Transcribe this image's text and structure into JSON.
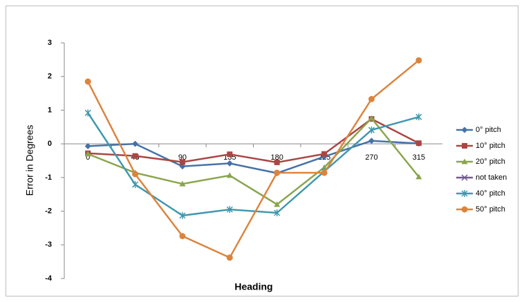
{
  "chart_data": {
    "type": "line",
    "x_label": "Heading",
    "y_label": "Error in Degrees",
    "categories": [
      "0",
      "45",
      "90",
      "135",
      "180",
      "225",
      "270",
      "315"
    ],
    "series": [
      {
        "name": "0° pitch",
        "color": "#4572A7",
        "marker": "diamond",
        "values": [
          -0.07,
          0.0,
          -0.67,
          -0.58,
          -0.87,
          -0.38,
          0.09,
          0.01
        ]
      },
      {
        "name": "10° pitch",
        "color": "#AA4643",
        "marker": "square",
        "values": [
          -0.28,
          -0.36,
          -0.54,
          -0.31,
          -0.55,
          -0.3,
          0.74,
          0.02
        ]
      },
      {
        "name": "20° pitch",
        "color": "#89A54E",
        "marker": "triangle",
        "values": [
          -0.3,
          -0.86,
          -1.19,
          -0.94,
          -1.8,
          -0.7,
          0.76,
          -0.98
        ]
      },
      {
        "name": "not taken",
        "color": "#71588F",
        "marker": "x",
        "values": [
          null,
          null,
          null,
          null,
          null,
          null,
          null,
          null
        ]
      },
      {
        "name": "40° pitch",
        "color": "#4198AF",
        "marker": "star",
        "values": [
          0.92,
          -1.21,
          -2.13,
          -1.95,
          -2.05,
          -0.82,
          0.41,
          0.8
        ]
      },
      {
        "name": "50° pitch",
        "color": "#DB843D",
        "marker": "circle",
        "values": [
          1.85,
          -0.9,
          -2.74,
          -3.38,
          -0.86,
          -0.86,
          1.33,
          2.48
        ]
      }
    ],
    "ylim": [
      -4,
      3
    ],
    "yticks": [
      -4,
      -3,
      -2,
      -1,
      0,
      1,
      2,
      3
    ],
    "grid": false,
    "legend": "right"
  }
}
